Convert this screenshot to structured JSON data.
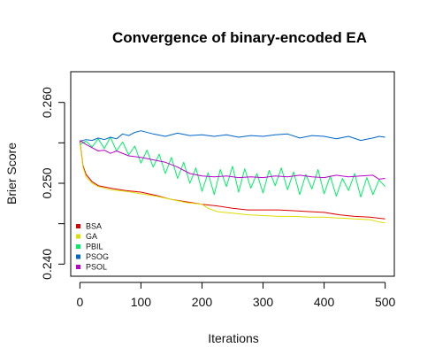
{
  "chart_data": {
    "type": "line",
    "title": "Convergence of binary-encoded EA",
    "xlabel": "Iterations",
    "ylabel": "Brier Score",
    "xlim": [
      -15,
      515
    ],
    "ylim": [
      0.2385,
      0.2638
    ],
    "xticks": [
      0,
      100,
      200,
      300,
      400,
      500
    ],
    "yticks": [
      0.24,
      0.245,
      0.25,
      0.255,
      0.26
    ],
    "ytick_labels": [
      "0.240",
      "",
      "0.250",
      "",
      "0.260"
    ],
    "grid": false,
    "legend_position": "bottom-left",
    "series": [
      {
        "name": "BSA",
        "color": "#dd0000",
        "x": [
          0,
          5,
          10,
          20,
          30,
          50,
          75,
          100,
          125,
          150,
          175,
          200,
          225,
          250,
          275,
          300,
          325,
          350,
          375,
          400,
          425,
          450,
          475,
          500
        ],
        "y": [
          0.2552,
          0.2522,
          0.2511,
          0.2502,
          0.2497,
          0.2494,
          0.2491,
          0.2489,
          0.2485,
          0.248,
          0.2477,
          0.2474,
          0.2472,
          0.2469,
          0.2467,
          0.2467,
          0.2467,
          0.2466,
          0.2465,
          0.2464,
          0.2461,
          0.2459,
          0.2458,
          0.2456
        ]
      },
      {
        "name": "GA",
        "color": "#dddd00",
        "x": [
          0,
          5,
          10,
          20,
          30,
          50,
          75,
          100,
          125,
          150,
          175,
          200,
          210,
          225,
          250,
          275,
          300,
          325,
          350,
          375,
          400,
          425,
          450,
          475,
          490,
          500
        ],
        "y": [
          0.255,
          0.252,
          0.2508,
          0.25,
          0.2496,
          0.2492,
          0.249,
          0.2487,
          0.2484,
          0.248,
          0.2476,
          0.2474,
          0.2469,
          0.2465,
          0.2463,
          0.2461,
          0.246,
          0.2459,
          0.2459,
          0.2458,
          0.2458,
          0.2457,
          0.2456,
          0.2455,
          0.2452,
          0.2451
        ]
      },
      {
        "name": "PBIL",
        "color": "#00ee66",
        "x": [
          0,
          10,
          20,
          30,
          40,
          50,
          60,
          70,
          80,
          90,
          100,
          110,
          120,
          130,
          140,
          150,
          160,
          170,
          180,
          190,
          200,
          210,
          220,
          230,
          240,
          250,
          260,
          270,
          280,
          290,
          300,
          310,
          320,
          330,
          340,
          350,
          360,
          370,
          380,
          390,
          400,
          410,
          420,
          430,
          440,
          450,
          460,
          470,
          480,
          490,
          500
        ],
        "y": [
          0.2548,
          0.2552,
          0.2545,
          0.2555,
          0.2543,
          0.2557,
          0.254,
          0.2551,
          0.2535,
          0.2546,
          0.2525,
          0.2541,
          0.252,
          0.2536,
          0.2512,
          0.2532,
          0.2506,
          0.2526,
          0.25,
          0.2519,
          0.249,
          0.2513,
          0.2486,
          0.2517,
          0.2496,
          0.2521,
          0.2489,
          0.2518,
          0.2494,
          0.2512,
          0.2488,
          0.2516,
          0.2497,
          0.2519,
          0.2492,
          0.2514,
          0.2486,
          0.2511,
          0.2493,
          0.2517,
          0.2487,
          0.2509,
          0.2484,
          0.2506,
          0.2491,
          0.2512,
          0.2483,
          0.2507,
          0.2486,
          0.2504,
          0.2496
        ]
      },
      {
        "name": "PSOG",
        "color": "#0066cc",
        "x": [
          0,
          10,
          20,
          30,
          40,
          50,
          60,
          70,
          80,
          90,
          100,
          120,
          140,
          160,
          180,
          200,
          220,
          240,
          260,
          280,
          300,
          320,
          340,
          360,
          380,
          400,
          420,
          440,
          460,
          480,
          490,
          500
        ],
        "y": [
          0.2552,
          0.2554,
          0.2553,
          0.2556,
          0.2554,
          0.2557,
          0.2555,
          0.2561,
          0.2559,
          0.2563,
          0.2565,
          0.2561,
          0.2558,
          0.2562,
          0.2559,
          0.256,
          0.2558,
          0.256,
          0.2557,
          0.2559,
          0.2558,
          0.256,
          0.2561,
          0.2556,
          0.2559,
          0.2558,
          0.2555,
          0.2558,
          0.2553,
          0.2556,
          0.2558,
          0.2557
        ]
      },
      {
        "name": "PSOL",
        "color": "#bb00cc",
        "x": [
          0,
          10,
          20,
          30,
          40,
          50,
          60,
          80,
          100,
          120,
          140,
          160,
          180,
          200,
          220,
          240,
          260,
          280,
          300,
          320,
          340,
          360,
          380,
          400,
          420,
          440,
          460,
          480,
          490,
          500
        ],
        "y": [
          0.2553,
          0.2548,
          0.2544,
          0.254,
          0.2541,
          0.2537,
          0.254,
          0.2534,
          0.2532,
          0.2529,
          0.2526,
          0.252,
          0.2512,
          0.2509,
          0.2508,
          0.2509,
          0.2507,
          0.2508,
          0.2507,
          0.2509,
          0.2508,
          0.251,
          0.2508,
          0.2507,
          0.251,
          0.2508,
          0.2509,
          0.251,
          0.2505,
          0.2506
        ]
      }
    ]
  }
}
